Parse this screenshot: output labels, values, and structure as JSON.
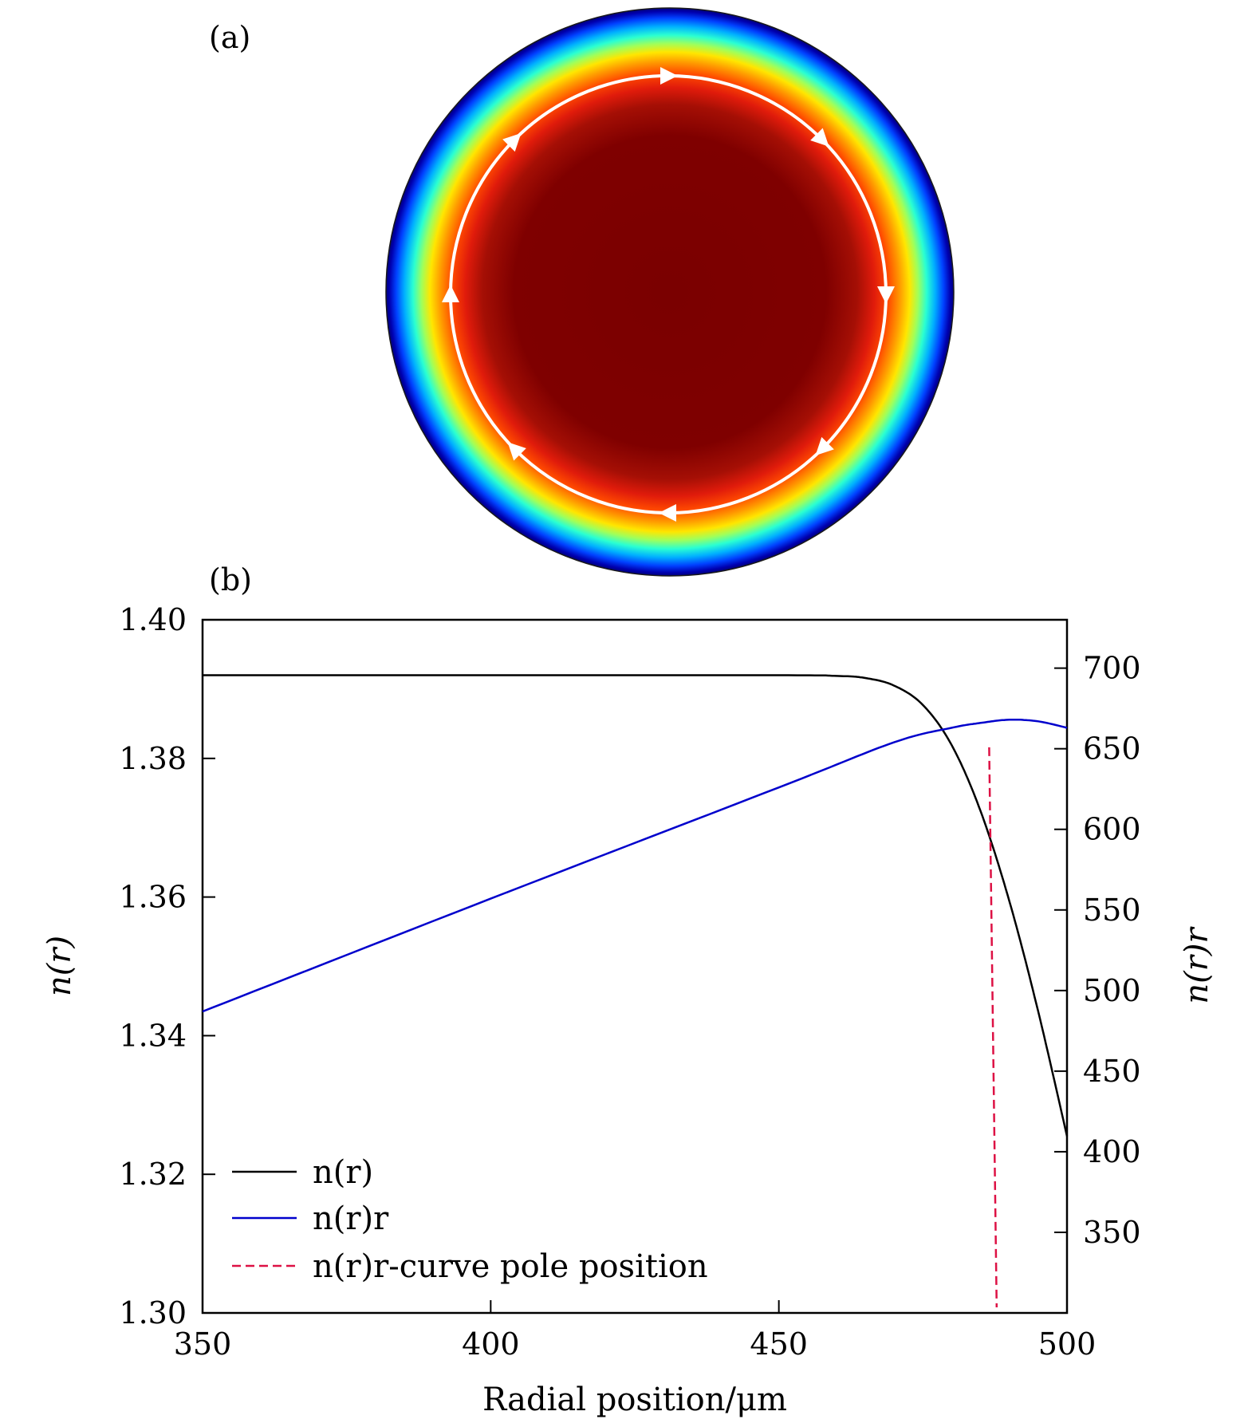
{
  "panel_a": {
    "label": "(a)",
    "ring_arrow_count": 8
  },
  "panel_b": {
    "label": "(b)"
  },
  "chart_data": {
    "type": "line",
    "xlabel": "Radial position/μm",
    "ylabel_left": "n(r)",
    "ylabel_right": "n(r)r",
    "xlim": [
      350,
      500
    ],
    "ylim_left": [
      1.3,
      1.4
    ],
    "ylim_right": [
      300,
      730
    ],
    "xticks": [
      "350",
      "400",
      "450",
      "500"
    ],
    "yticks_left": [
      "1.30",
      "1.32",
      "1.34",
      "1.36",
      "1.38",
      "1.40"
    ],
    "yticks_right": [
      "350",
      "400",
      "450",
      "500",
      "550",
      "600",
      "650",
      "700"
    ],
    "grid": false,
    "legend_position": "lower-left",
    "series": [
      {
        "name": "n(r)",
        "axis": "left",
        "color": "#000000",
        "style": "solid",
        "x": [
          350,
          400,
          450,
          460,
          465,
          470,
          475,
          480,
          485,
          490,
          495,
          500
        ],
        "y": [
          1.392,
          1.392,
          1.392,
          1.3919,
          1.3916,
          1.3905,
          1.3877,
          1.3819,
          1.3724,
          1.3594,
          1.3435,
          1.3255
        ]
      },
      {
        "name": "n(r)r",
        "axis": "right",
        "color": "#0000cc",
        "style": "solid",
        "x": [
          350,
          400,
          450,
          470,
          480,
          485,
          490,
          495,
          500
        ],
        "y": [
          487,
          557,
          626,
          654,
          663,
          666,
          668,
          667,
          663
        ]
      },
      {
        "name": "n(r)r-curve pole position",
        "axis": "left",
        "color": "#dd1144",
        "style": "dashed",
        "x": [
          486.5,
          487.8
        ],
        "y": [
          1.3816,
          1.3008
        ]
      }
    ]
  },
  "colors": {
    "ring_path": "#ffffff",
    "frame": "#000000"
  }
}
